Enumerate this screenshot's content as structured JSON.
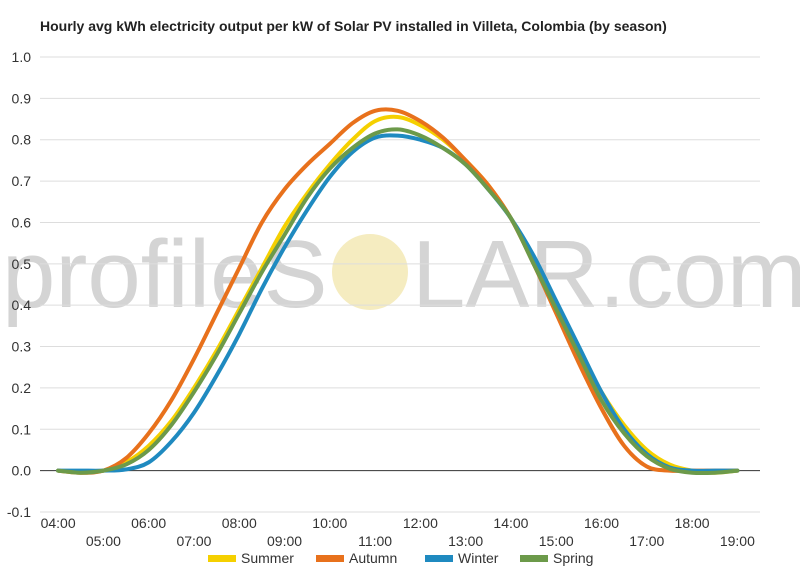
{
  "watermark": {
    "left": "profileS",
    "right": "LAR.com"
  },
  "chart_data": {
    "type": "line",
    "title": "Hourly avg kWh electricity output per kW of Solar PV installed in Villeta, Colombia (by season)",
    "xlabel": "",
    "ylabel": "",
    "ylim": [
      -0.1,
      1.0
    ],
    "xlim": [
      3.6,
      19.5
    ],
    "yticks": [
      "-0.1",
      "0.0",
      "0.1",
      "0.2",
      "0.3",
      "0.4",
      "0.5",
      "0.6",
      "0.7",
      "0.8",
      "0.9",
      "1.0"
    ],
    "xticks_upper": [
      "04:00",
      "06:00",
      "08:00",
      "10:00",
      "12:00",
      "14:00",
      "16:00",
      "18:00"
    ],
    "xticks_lower": [
      "05:00",
      "07:00",
      "09:00",
      "11:00",
      "13:00",
      "15:00",
      "17:00",
      "19:00"
    ],
    "grid": true,
    "legend_position": "bottom",
    "x": [
      4,
      4.5,
      5,
      5.5,
      6,
      6.5,
      7,
      7.5,
      8,
      8.5,
      9,
      9.5,
      10,
      10.5,
      11,
      11.5,
      12,
      12.5,
      13,
      13.5,
      14,
      14.5,
      15,
      15.5,
      16,
      16.5,
      17,
      17.5,
      18,
      18.5,
      19
    ],
    "series": [
      {
        "name": "Summer",
        "color": "#f5d000",
        "values": [
          0.0,
          -0.005,
          0.0,
          0.02,
          0.06,
          0.12,
          0.2,
          0.29,
          0.39,
          0.49,
          0.59,
          0.67,
          0.74,
          0.8,
          0.845,
          0.855,
          0.835,
          0.8,
          0.75,
          0.69,
          0.61,
          0.51,
          0.4,
          0.29,
          0.19,
          0.11,
          0.05,
          0.015,
          0.0,
          -0.005,
          0.0
        ]
      },
      {
        "name": "Autumn",
        "color": "#e8711c",
        "values": [
          0.0,
          -0.005,
          0.0,
          0.03,
          0.09,
          0.17,
          0.27,
          0.38,
          0.49,
          0.6,
          0.68,
          0.74,
          0.79,
          0.84,
          0.87,
          0.87,
          0.845,
          0.805,
          0.75,
          0.69,
          0.61,
          0.5,
          0.38,
          0.26,
          0.15,
          0.06,
          0.01,
          0.0,
          0.0,
          0.0,
          0.0
        ]
      },
      {
        "name": "Winter",
        "color": "#1f8ac0",
        "values": [
          0.0,
          0.0,
          0.0,
          0.003,
          0.02,
          0.07,
          0.14,
          0.23,
          0.33,
          0.44,
          0.54,
          0.63,
          0.71,
          0.77,
          0.805,
          0.81,
          0.8,
          0.78,
          0.74,
          0.68,
          0.61,
          0.52,
          0.41,
          0.3,
          0.19,
          0.1,
          0.04,
          0.008,
          0.0,
          0.0,
          0.0
        ]
      },
      {
        "name": "Spring",
        "color": "#6c9a4a",
        "values": [
          0.0,
          -0.005,
          0.0,
          0.015,
          0.05,
          0.11,
          0.19,
          0.28,
          0.38,
          0.48,
          0.57,
          0.66,
          0.73,
          0.78,
          0.815,
          0.825,
          0.81,
          0.78,
          0.74,
          0.68,
          0.61,
          0.5,
          0.39,
          0.28,
          0.17,
          0.09,
          0.035,
          0.005,
          -0.005,
          -0.005,
          0.0
        ]
      }
    ]
  }
}
